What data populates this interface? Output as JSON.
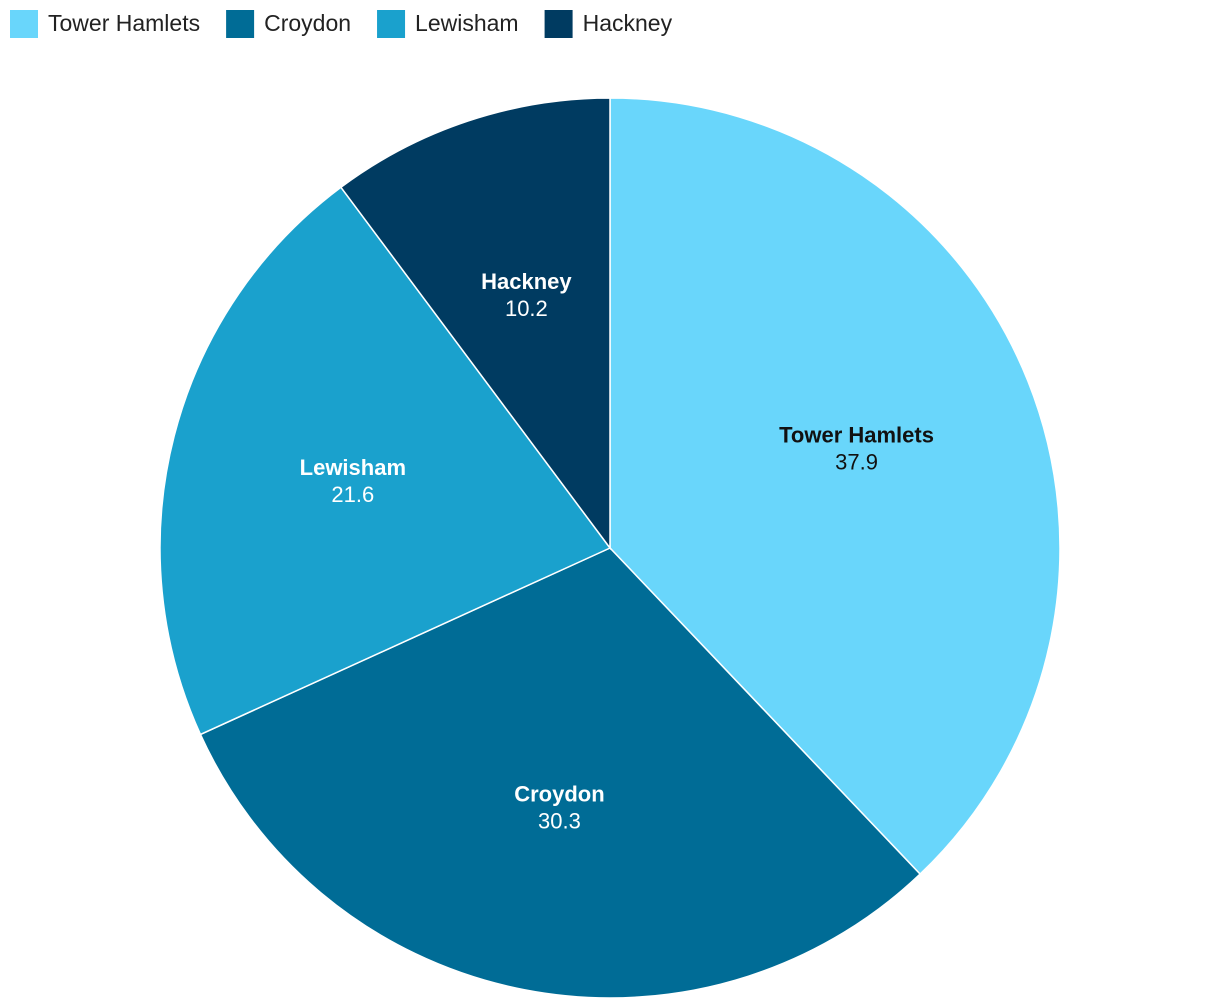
{
  "chart_data": {
    "type": "pie",
    "categories": [
      "Tower Hamlets",
      "Croydon",
      "Lewisham",
      "Hackney"
    ],
    "values": [
      37.9,
      30.3,
      21.6,
      10.2
    ],
    "colors": [
      "#69d6fb",
      "#006c96",
      "#1aa1cd",
      "#003b61"
    ],
    "legend": "top-left"
  }
}
